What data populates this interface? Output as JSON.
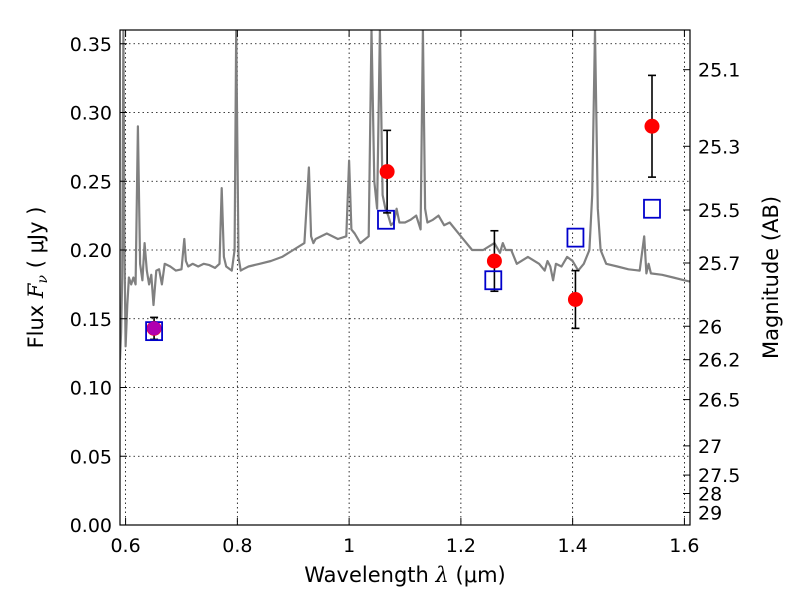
{
  "chart_data": {
    "type": "scatter",
    "title": "",
    "xlabel": "Wavelength",
    "xlabel_symbol": "λ",
    "xlabel_unit": "(μm)",
    "ylabel": "Flux",
    "ylabel_symbol": "F",
    "ylabel_subscript": "ν",
    "ylabel_unit": "( μJy )",
    "y2label": "Magnitude (AB)",
    "xlim": [
      0.59,
      1.61
    ],
    "ylim": [
      0.0,
      0.36
    ],
    "grid": true,
    "x_ticks": [
      0.6,
      0.8,
      1.0,
      1.2,
      1.4,
      1.6
    ],
    "x_tick_labels": [
      "0.6",
      "0.8",
      "1",
      "1.2",
      "1.4",
      "1.6"
    ],
    "y_ticks": [
      0.0,
      0.05,
      0.1,
      0.15,
      0.2,
      0.25,
      0.3,
      0.35
    ],
    "y_tick_labels": [
      "0.00",
      "0.05",
      "0.10",
      "0.15",
      "0.20",
      "0.25",
      "0.30",
      "0.35"
    ],
    "y2_ticks": [
      {
        "label": "25.1",
        "value": 25.1
      },
      {
        "label": "25.3",
        "value": 25.3
      },
      {
        "label": "25.5",
        "value": 25.5
      },
      {
        "label": "25.7",
        "value": 25.7
      },
      {
        "label": "26",
        "value": 26.0
      },
      {
        "label": "26.2",
        "value": 26.2
      },
      {
        "label": "26.5",
        "value": 26.5
      },
      {
        "label": "27",
        "value": 27.0
      },
      {
        "label": "27.5",
        "value": 27.5
      },
      {
        "label": "28",
        "value": 28.0
      },
      {
        "label": "29",
        "value": 29.0
      }
    ],
    "series": [
      {
        "kind": "line",
        "color": "#808080",
        "x": [
          0.59,
          0.592,
          0.594,
          0.596,
          0.598,
          0.6,
          0.603,
          0.606,
          0.61,
          0.614,
          0.618,
          0.622,
          0.626,
          0.63,
          0.634,
          0.638,
          0.642,
          0.646,
          0.65,
          0.655,
          0.66,
          0.665,
          0.67,
          0.68,
          0.69,
          0.7,
          0.705,
          0.708,
          0.712,
          0.72,
          0.73,
          0.74,
          0.75,
          0.76,
          0.768,
          0.772,
          0.776,
          0.78,
          0.79,
          0.795,
          0.798,
          0.802,
          0.806,
          0.81,
          0.82,
          0.84,
          0.86,
          0.88,
          0.9,
          0.92,
          0.928,
          0.932,
          0.936,
          0.94,
          0.95,
          0.96,
          0.98,
          0.995,
          1.0,
          1.004,
          1.01,
          1.02,
          1.035,
          1.04,
          1.045,
          1.05,
          1.055,
          1.06,
          1.065,
          1.07,
          1.075,
          1.08,
          1.085,
          1.09,
          1.1,
          1.11,
          1.12,
          1.128,
          1.132,
          1.136,
          1.14,
          1.15,
          1.16,
          1.17,
          1.18,
          1.2,
          1.22,
          1.24,
          1.26,
          1.27,
          1.275,
          1.28,
          1.29,
          1.3,
          1.32,
          1.34,
          1.35,
          1.355,
          1.36,
          1.365,
          1.37,
          1.38,
          1.39,
          1.4,
          1.41,
          1.42,
          1.43,
          1.435,
          1.44,
          1.445,
          1.45,
          1.46,
          1.48,
          1.5,
          1.52,
          1.528,
          1.532,
          1.536,
          1.54,
          1.56,
          1.58,
          1.6,
          1.61
        ],
        "y": [
          0.12,
          0.14,
          0.18,
          0.36,
          0.2,
          0.13,
          0.16,
          0.18,
          0.175,
          0.18,
          0.175,
          0.29,
          0.19,
          0.178,
          0.205,
          0.185,
          0.175,
          0.182,
          0.16,
          0.185,
          0.186,
          0.175,
          0.19,
          0.188,
          0.185,
          0.186,
          0.208,
          0.192,
          0.188,
          0.19,
          0.188,
          0.19,
          0.189,
          0.187,
          0.19,
          0.245,
          0.195,
          0.188,
          0.185,
          0.2,
          0.36,
          0.195,
          0.185,
          0.186,
          0.188,
          0.19,
          0.192,
          0.195,
          0.2,
          0.205,
          0.26,
          0.21,
          0.205,
          0.208,
          0.21,
          0.212,
          0.208,
          0.21,
          0.265,
          0.215,
          0.212,
          0.205,
          0.21,
          0.36,
          0.25,
          0.23,
          0.36,
          0.24,
          0.23,
          0.225,
          0.218,
          0.22,
          0.23,
          0.22,
          0.22,
          0.222,
          0.225,
          0.215,
          0.36,
          0.23,
          0.22,
          0.222,
          0.225,
          0.218,
          0.22,
          0.21,
          0.2,
          0.2,
          0.205,
          0.198,
          0.205,
          0.2,
          0.2,
          0.19,
          0.195,
          0.19,
          0.185,
          0.192,
          0.188,
          0.178,
          0.19,
          0.188,
          0.195,
          0.192,
          0.185,
          0.19,
          0.2,
          0.24,
          0.36,
          0.23,
          0.2,
          0.19,
          0.188,
          0.186,
          0.185,
          0.21,
          0.183,
          0.19,
          0.183,
          0.182,
          0.18,
          0.178,
          0.177
        ]
      },
      {
        "kind": "errorbar",
        "color": "#ff0000",
        "marker": "circle",
        "points": [
          {
            "x": 0.651,
            "y": 0.143,
            "err": 0.008
          },
          {
            "x": 1.068,
            "y": 0.257,
            "err": 0.03
          },
          {
            "x": 1.26,
            "y": 0.192,
            "err": 0.022
          },
          {
            "x": 1.405,
            "y": 0.164,
            "err": 0.021
          },
          {
            "x": 1.542,
            "y": 0.29,
            "err": 0.037
          }
        ]
      },
      {
        "kind": "markers",
        "color": "#0000cc",
        "marker": "square",
        "points": [
          {
            "x": 0.651,
            "y": 0.141
          },
          {
            "x": 1.066,
            "y": 0.222
          },
          {
            "x": 1.258,
            "y": 0.178
          },
          {
            "x": 1.405,
            "y": 0.209
          },
          {
            "x": 1.542,
            "y": 0.23
          }
        ]
      },
      {
        "kind": "markers",
        "color": "#b000b0",
        "marker": "circle",
        "points": [
          {
            "x": 0.651,
            "y": 0.143
          }
        ]
      }
    ]
  }
}
